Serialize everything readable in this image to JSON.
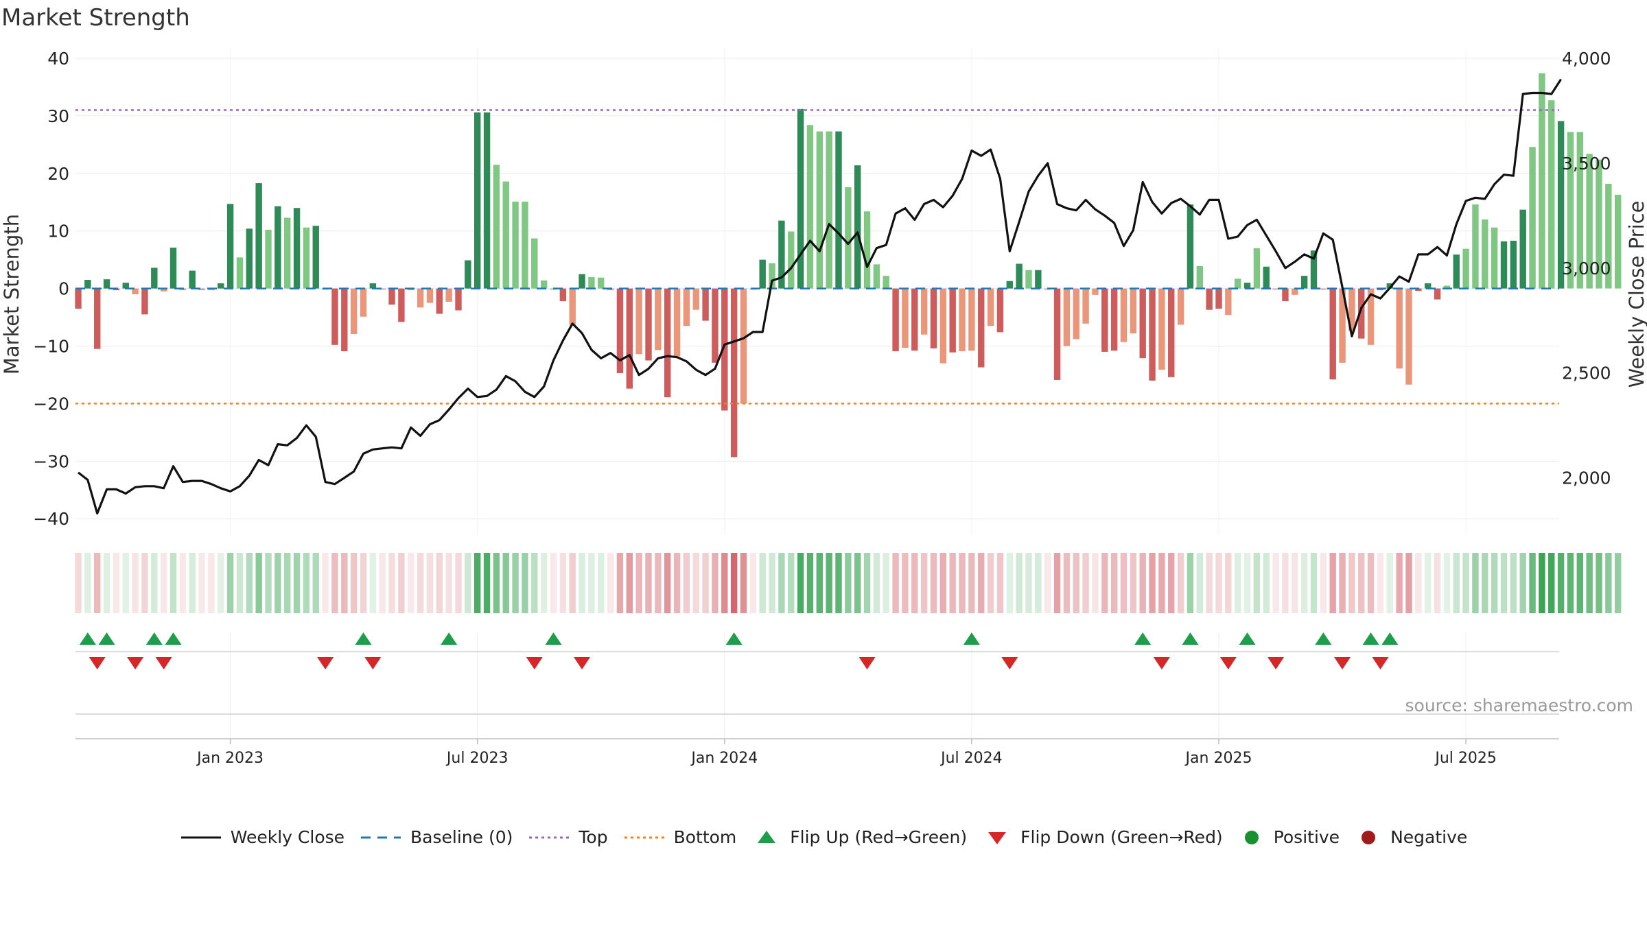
{
  "title": "Market Strength",
  "source": "source: sharemaestro.com",
  "colors": {
    "line": "#111111",
    "baseline": "#1f77b4",
    "top": "#9467bd",
    "bottom": "#ff7f0e",
    "green_dark": "#2e8b57",
    "green_light": "#81c784",
    "red_dark": "#cd5c5c",
    "red_light": "#e9967a",
    "flip_up": "#1e9e4a",
    "flip_down": "#d62728",
    "positive": "#1a8f2e",
    "negative": "#a01c1c"
  },
  "chart_data": {
    "type": "bar",
    "title": "Market Strength",
    "ylabel": "Market Strength",
    "y2label": "Weekly Close Price",
    "ylim": [
      -42,
      40
    ],
    "y_ticks": [
      40,
      30,
      20,
      10,
      0,
      -10,
      -20,
      -30,
      -40
    ],
    "y_tick_labels": [
      "40",
      "30",
      "20",
      "10",
      "0",
      "−10",
      "−20",
      "−30",
      "−40"
    ],
    "y2lim": [
      1750,
      4000
    ],
    "y2_ticks": [
      4000,
      3500,
      3000,
      2500,
      2000
    ],
    "y2_tick_labels": [
      "4,000",
      "3,500",
      "3,000",
      "2,500",
      "2,000"
    ],
    "x_ticks": [
      {
        "label": "Jan 2023",
        "week": 16
      },
      {
        "label": "Jul 2023",
        "week": 42
      },
      {
        "label": "Jan 2024",
        "week": 68
      },
      {
        "label": "Jul 2024",
        "week": 94
      },
      {
        "label": "Jan 2025",
        "week": 120
      },
      {
        "label": "Jul 2025",
        "week": 146
      }
    ],
    "top_level": 31,
    "bottom_level": -20,
    "strength": [
      -3.5,
      1.5,
      -10.5,
      1.6,
      -0.3,
      1,
      -1,
      -4.5,
      3.6,
      -0.5,
      7.1,
      -0.3,
      3.1,
      -0.3,
      -0.3,
      0.9,
      14.7,
      5.4,
      10.4,
      18.3,
      10.2,
      14.3,
      12.3,
      14,
      10.6,
      10.9,
      -0.2,
      -9.8,
      -10.9,
      -7.9,
      -4.9,
      0.9,
      -0.2,
      -2.8,
      -5.8,
      -0.3,
      -3.3,
      -2.5,
      -4.4,
      -2.3,
      -3.8,
      4.9,
      30.6,
      30.6,
      21.5,
      18.6,
      15.1,
      15.1,
      8.7,
      1.4,
      -0.2,
      -2.2,
      -6.3,
      2.5,
      2,
      1.9,
      -0.3,
      -14.7,
      -17.4,
      -11.4,
      -12.5,
      -10.7,
      -18.9,
      -11.8,
      -6.5,
      -3.7,
      -5.6,
      -12.9,
      -21.2,
      -29.3,
      -20,
      -0.2,
      5,
      4.4,
      11.8,
      9.9,
      31.2,
      28.4,
      27.3,
      27.3,
      27.3,
      17.6,
      21.4,
      13.4,
      4.2,
      2.2,
      -10.9,
      -10.3,
      -10.8,
      -8,
      -10.4,
      -13,
      -11.1,
      -10.9,
      -10.8,
      -13.7,
      -6.5,
      -7.6,
      1.3,
      4.3,
      3.2,
      3.2,
      -0.2,
      -15.9,
      -10,
      -8.8,
      -6.1,
      -1.1,
      -11,
      -10.8,
      -9.3,
      -7.8,
      -12.1,
      -16,
      -14.1,
      -15.4,
      -6.3,
      14.6,
      3.9,
      -3.7,
      -3.5,
      -4.6,
      1.7,
      1,
      7,
      3.8,
      -0.2,
      -2.2,
      -1.1,
      2.2,
      6.6,
      -0.2,
      -15.8,
      -12.9,
      -7.4,
      -8.7,
      -9.8,
      -0.3,
      0.9,
      -13.9,
      -16.7,
      -0.4,
      0.9,
      -1.9,
      0.5,
      5.9,
      6.9,
      14.6,
      12,
      10.6,
      8.2,
      8.3,
      13.7,
      24.6,
      37.4,
      32.7,
      29.1,
      27.2,
      27.2,
      23.4,
      22.4,
      18.2,
      16.3
    ],
    "strength_dark": [
      1,
      1,
      1,
      1,
      1,
      1,
      0,
      1,
      1,
      0,
      1,
      0,
      1,
      0,
      0,
      1,
      1,
      0,
      1,
      1,
      0,
      1,
      0,
      1,
      0,
      1,
      0,
      1,
      1,
      0,
      0,
      1,
      0,
      1,
      1,
      0,
      0,
      0,
      1,
      0,
      1,
      1,
      1,
      1,
      0,
      0,
      0,
      0,
      0,
      0,
      0,
      1,
      0,
      1,
      0,
      0,
      0,
      1,
      1,
      0,
      1,
      0,
      1,
      0,
      0,
      0,
      1,
      1,
      1,
      1,
      0,
      0,
      1,
      0,
      1,
      0,
      1,
      0,
      0,
      0,
      1,
      0,
      1,
      0,
      0,
      0,
      1,
      0,
      1,
      0,
      1,
      0,
      1,
      0,
      0,
      1,
      0,
      1,
      1,
      1,
      0,
      1,
      0,
      1,
      0,
      0,
      0,
      0,
      1,
      1,
      0,
      0,
      1,
      1,
      0,
      1,
      0,
      1,
      0,
      1,
      1,
      0,
      0,
      1,
      0,
      1,
      0,
      1,
      0,
      1,
      1,
      0,
      1,
      0,
      0,
      1,
      0,
      1,
      1,
      0,
      0,
      1,
      1,
      1,
      0,
      1,
      0,
      0,
      0,
      0,
      1,
      1,
      1,
      0,
      0,
      0,
      1,
      0,
      0,
      0,
      0
    ],
    "weekly_close": [
      2025,
      1990,
      1830,
      1945,
      1945,
      1925,
      1955,
      1960,
      1960,
      1950,
      2055,
      1980,
      1985,
      1985,
      1970,
      1950,
      1935,
      1960,
      2010,
      2085,
      2060,
      2160,
      2155,
      2190,
      2250,
      2195,
      1980,
      1970,
      2000,
      2030,
      2115,
      2135,
      2140,
      2145,
      2140,
      2240,
      2200,
      2255,
      2275,
      2325,
      2380,
      2425,
      2385,
      2390,
      2420,
      2485,
      2460,
      2410,
      2385,
      2435,
      2560,
      2655,
      2735,
      2690,
      2610,
      2570,
      2595,
      2560,
      2585,
      2490,
      2520,
      2570,
      2580,
      2575,
      2555,
      2515,
      2490,
      2520,
      2635,
      2650,
      2665,
      2695,
      2695,
      2940,
      2955,
      3000,
      3065,
      3130,
      3080,
      3210,
      3165,
      3115,
      3170,
      3005,
      3095,
      3110,
      3260,
      3285,
      3230,
      3305,
      3325,
      3290,
      3345,
      3425,
      3560,
      3535,
      3565,
      3425,
      3080,
      3220,
      3365,
      3440,
      3500,
      3305,
      3285,
      3275,
      3325,
      3280,
      3250,
      3215,
      3105,
      3180,
      3410,
      3315,
      3260,
      3310,
      3330,
      3295,
      3255,
      3325,
      3325,
      3140,
      3150,
      3205,
      3230,
      3155,
      3080,
      3000,
      3030,
      3065,
      3045,
      3165,
      3135,
      2910,
      2675,
      2810,
      2875,
      2855,
      2905,
      2960,
      2935,
      3065,
      3065,
      3100,
      3060,
      3210,
      3320,
      3335,
      3330,
      3400,
      3445,
      3440,
      3830,
      3835,
      3835,
      3830,
      3900
    ],
    "flip_up_weeks": [
      1,
      3,
      8,
      10,
      30,
      39,
      50,
      69,
      94,
      112,
      117,
      123,
      131,
      136,
      138
    ],
    "flip_down_weeks": [
      2,
      6,
      9,
      26,
      31,
      48,
      53,
      83,
      98,
      114,
      121,
      126,
      133,
      137
    ],
    "series": [
      {
        "name": "Weekly Close"
      },
      {
        "name": "Baseline (0)"
      },
      {
        "name": "Top"
      },
      {
        "name": "Bottom"
      },
      {
        "name": "Flip Up (Red→Green)"
      },
      {
        "name": "Flip Down (Green→Red)"
      },
      {
        "name": "Positive"
      },
      {
        "name": "Negative"
      }
    ]
  },
  "legend": [
    {
      "label": "Weekly Close",
      "icon": "solid-line"
    },
    {
      "label": "Baseline (0)",
      "icon": "dashed-line"
    },
    {
      "label": "Top",
      "icon": "dotted-line"
    },
    {
      "label": "Bottom",
      "icon": "dotted-line"
    },
    {
      "label": "Flip Up (Red→Green)",
      "icon": "triangle-up"
    },
    {
      "label": "Flip Down (Green→Red)",
      "icon": "triangle-down"
    },
    {
      "label": "Positive",
      "icon": "circle"
    },
    {
      "label": "Negative",
      "icon": "circle"
    }
  ]
}
